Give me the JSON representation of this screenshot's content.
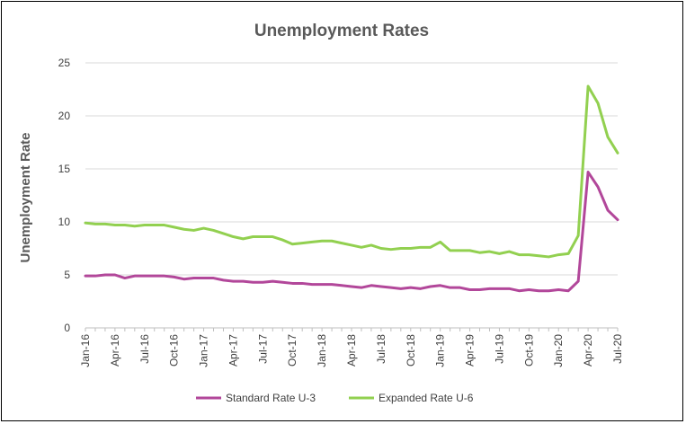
{
  "chart_data": {
    "type": "line",
    "title": "Unemployment Rates",
    "xlabel": "",
    "ylabel": "Unemployment Rate",
    "ylim": [
      0,
      25
    ],
    "yticks": [
      0,
      5,
      10,
      15,
      20,
      25
    ],
    "grid": true,
    "legend_position": "bottom",
    "x": [
      "Jan-16",
      "Feb-16",
      "Mar-16",
      "Apr-16",
      "May-16",
      "Jun-16",
      "Jul-16",
      "Aug-16",
      "Sep-16",
      "Oct-16",
      "Nov-16",
      "Dec-16",
      "Jan-17",
      "Feb-17",
      "Mar-17",
      "Apr-17",
      "May-17",
      "Jun-17",
      "Jul-17",
      "Aug-17",
      "Sep-17",
      "Oct-17",
      "Nov-17",
      "Dec-17",
      "Jan-18",
      "Feb-18",
      "Mar-18",
      "Apr-18",
      "May-18",
      "Jun-18",
      "Jul-18",
      "Aug-18",
      "Sep-18",
      "Oct-18",
      "Nov-18",
      "Dec-18",
      "Jan-19",
      "Feb-19",
      "Mar-19",
      "Apr-19",
      "May-19",
      "Jun-19",
      "Jul-19",
      "Aug-19",
      "Sep-19",
      "Oct-19",
      "Nov-19",
      "Dec-19",
      "Jan-20",
      "Feb-20",
      "Mar-20",
      "Apr-20",
      "May-20",
      "Jun-20",
      "Jul-20"
    ],
    "x_tick_labels": [
      "Jan-16",
      "Apr-16",
      "Jul-16",
      "Oct-16",
      "Jan-17",
      "Apr-17",
      "Jul-17",
      "Oct-17",
      "Jan-18",
      "Apr-18",
      "Jul-18",
      "Oct-18",
      "Jan-19",
      "Apr-19",
      "Jul-19",
      "Oct-19",
      "Jan-20",
      "Apr-20",
      "Jul-20"
    ],
    "series": [
      {
        "name": "Standard Rate U-3",
        "color": "#b2479a",
        "values": [
          4.9,
          4.9,
          5.0,
          5.0,
          4.7,
          4.9,
          4.9,
          4.9,
          4.9,
          4.8,
          4.6,
          4.7,
          4.7,
          4.7,
          4.5,
          4.4,
          4.4,
          4.3,
          4.3,
          4.4,
          4.3,
          4.2,
          4.2,
          4.1,
          4.1,
          4.1,
          4.0,
          3.9,
          3.8,
          4.0,
          3.9,
          3.8,
          3.7,
          3.8,
          3.7,
          3.9,
          4.0,
          3.8,
          3.8,
          3.6,
          3.6,
          3.7,
          3.7,
          3.7,
          3.5,
          3.6,
          3.5,
          3.5,
          3.6,
          3.5,
          4.4,
          14.7,
          13.3,
          11.1,
          10.2
        ]
      },
      {
        "name": "Expanded Rate U-6",
        "color": "#92d050",
        "values": [
          9.9,
          9.8,
          9.8,
          9.7,
          9.7,
          9.6,
          9.7,
          9.7,
          9.7,
          9.5,
          9.3,
          9.2,
          9.4,
          9.2,
          8.9,
          8.6,
          8.4,
          8.6,
          8.6,
          8.6,
          8.3,
          7.9,
          8.0,
          8.1,
          8.2,
          8.2,
          8.0,
          7.8,
          7.6,
          7.8,
          7.5,
          7.4,
          7.5,
          7.5,
          7.6,
          7.6,
          8.1,
          7.3,
          7.3,
          7.3,
          7.1,
          7.2,
          7.0,
          7.2,
          6.9,
          6.9,
          6.8,
          6.7,
          6.9,
          7.0,
          8.7,
          22.8,
          21.2,
          18.0,
          16.5
        ]
      }
    ]
  }
}
